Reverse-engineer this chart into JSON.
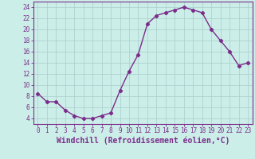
{
  "x": [
    0,
    1,
    2,
    3,
    4,
    5,
    6,
    7,
    8,
    9,
    10,
    11,
    12,
    13,
    14,
    15,
    16,
    17,
    18,
    19,
    20,
    21,
    22,
    23
  ],
  "y": [
    8.5,
    7.0,
    7.0,
    5.5,
    4.5,
    4.0,
    4.0,
    4.5,
    5.0,
    9.0,
    12.5,
    15.5,
    21.0,
    22.5,
    23.0,
    23.5,
    24.0,
    23.5,
    23.0,
    20.0,
    18.0,
    16.0,
    13.5,
    14.0
  ],
  "line_color": "#7b2d8b",
  "marker": "D",
  "marker_size": 2.2,
  "bg_color": "#cceee8",
  "grid_color": "#aacccc",
  "xlabel": "Windchill (Refroidissement éolien,°C)",
  "xlim": [
    -0.5,
    23.5
  ],
  "ylim": [
    3,
    25
  ],
  "yticks": [
    4,
    6,
    8,
    10,
    12,
    14,
    16,
    18,
    20,
    22,
    24
  ],
  "xticks": [
    0,
    1,
    2,
    3,
    4,
    5,
    6,
    7,
    8,
    9,
    10,
    11,
    12,
    13,
    14,
    15,
    16,
    17,
    18,
    19,
    20,
    21,
    22,
    23
  ],
  "tick_color": "#7b2d8b",
  "tick_fontsize": 5.5,
  "xlabel_fontsize": 7.0,
  "line_width": 1.0
}
